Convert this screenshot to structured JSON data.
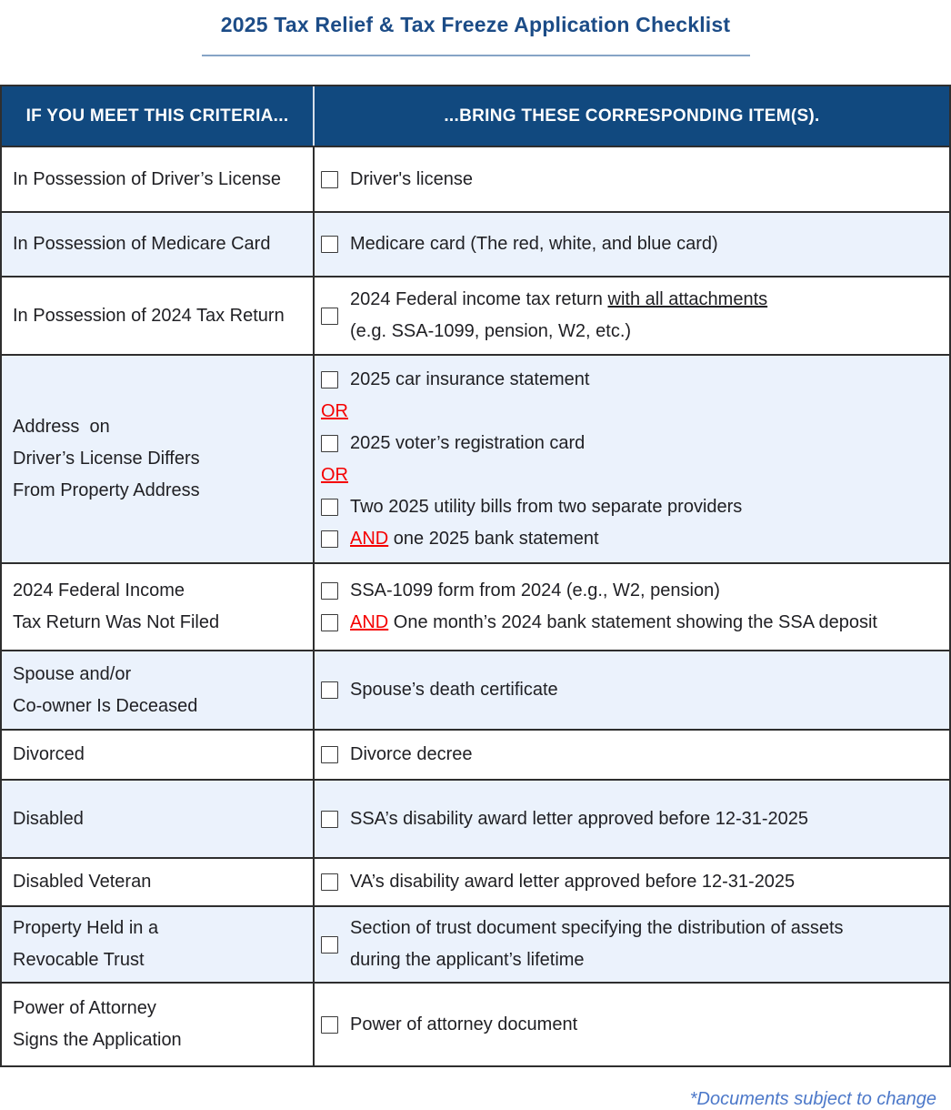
{
  "title": "2025 Tax Relief & Tax Freeze Application Checklist",
  "footnote": "*Documents subject to change",
  "colors": {
    "header_bg": "#11497F",
    "alt_row_bg": "#EBF2FC",
    "title_blue": "#1C4C87",
    "rule_blue": "#86A4C6",
    "accent_red": "#F50000",
    "footnote_blue": "#4C78C9",
    "border_dark": "#2E2E2E"
  },
  "table": {
    "headers": [
      "IF YOU MEET THIS CRITERIA...",
      "...BRING THESE CORRESPONDING ITEM(S)."
    ],
    "rows": [
      {
        "criteria": [
          "In Possession of Driver’s License"
        ],
        "items": [
          {
            "checkbox": true,
            "lines": [
              [
                {
                  "t": "Driver's license"
                }
              ]
            ]
          }
        ]
      },
      {
        "criteria": [
          "In Possession of Medicare Card"
        ],
        "items": [
          {
            "checkbox": true,
            "lines": [
              [
                {
                  "t": "Medicare card (The red, white, and blue card)"
                }
              ]
            ]
          }
        ]
      },
      {
        "criteria": [
          "In Possession of 2024 Tax Return"
        ],
        "items": [
          {
            "checkbox": true,
            "lines": [
              [
                {
                  "t": "2024 Federal income tax return "
                },
                {
                  "t": "with all attachments",
                  "style": "underline"
                }
              ],
              [
                {
                  "t": "(e.g. SSA-1099, pension, W2, etc.)"
                }
              ]
            ]
          }
        ]
      },
      {
        "criteria": [
          "Address  on",
          "Driver’s License Differs",
          "From Property Address"
        ],
        "items": [
          {
            "checkbox": true,
            "lines": [
              [
                {
                  "t": "2025 car insurance statement"
                }
              ]
            ]
          },
          {
            "checkbox": false,
            "lines": [
              [
                {
                  "t": "OR",
                  "style": "red-underline"
                }
              ]
            ]
          },
          {
            "checkbox": true,
            "lines": [
              [
                {
                  "t": "2025 voter’s registration card"
                }
              ]
            ]
          },
          {
            "checkbox": false,
            "lines": [
              [
                {
                  "t": "OR",
                  "style": "red-underline"
                }
              ]
            ]
          },
          {
            "checkbox": true,
            "lines": [
              [
                {
                  "t": "Two 2025 utility bills from two separate providers"
                }
              ]
            ]
          },
          {
            "checkbox": true,
            "lines": [
              [
                {
                  "t": "AND",
                  "style": "red-underline"
                },
                {
                  "t": " one 2025 bank statement"
                }
              ]
            ]
          }
        ]
      },
      {
        "criteria": [
          "2024 Federal Income",
          "Tax Return Was Not Filed"
        ],
        "items": [
          {
            "checkbox": true,
            "lines": [
              [
                {
                  "t": "SSA-1099 form from 2024 (e.g., W2, pension)"
                }
              ]
            ]
          },
          {
            "checkbox": true,
            "lines": [
              [
                {
                  "t": "AND",
                  "style": "red-underline"
                },
                {
                  "t": " One month’s 2024 bank statement showing the SSA deposit"
                }
              ]
            ]
          }
        ]
      },
      {
        "criteria": [
          "Spouse and/or",
          "Co-owner Is Deceased"
        ],
        "items": [
          {
            "checkbox": true,
            "lines": [
              [
                {
                  "t": "Spouse’s death certificate"
                }
              ]
            ]
          }
        ]
      },
      {
        "criteria": [
          "Divorced"
        ],
        "items": [
          {
            "checkbox": true,
            "lines": [
              [
                {
                  "t": "Divorce decree"
                }
              ]
            ]
          }
        ]
      },
      {
        "criteria": [
          "Disabled"
        ],
        "items": [
          {
            "checkbox": true,
            "lines": [
              [
                {
                  "t": "SSA’s disability award letter approved before 12-31-2025"
                }
              ]
            ]
          }
        ]
      },
      {
        "criteria": [
          "Disabled Veteran"
        ],
        "items": [
          {
            "checkbox": true,
            "lines": [
              [
                {
                  "t": "VA’s disability award letter approved before 12-31-2025"
                }
              ]
            ]
          }
        ]
      },
      {
        "criteria": [
          "Property Held in a",
          "Revocable Trust"
        ],
        "items": [
          {
            "checkbox": true,
            "lines": [
              [
                {
                  "t": "Section of trust document specifying the distribution of assets"
                }
              ],
              [
                {
                  "t": "during the applicant’s lifetime"
                }
              ]
            ]
          }
        ]
      },
      {
        "criteria": [
          "Power of Attorney",
          "Signs the Application"
        ],
        "items": [
          {
            "checkbox": true,
            "lines": [
              [
                {
                  "t": "Power of attorney document"
                }
              ]
            ]
          }
        ]
      }
    ]
  }
}
